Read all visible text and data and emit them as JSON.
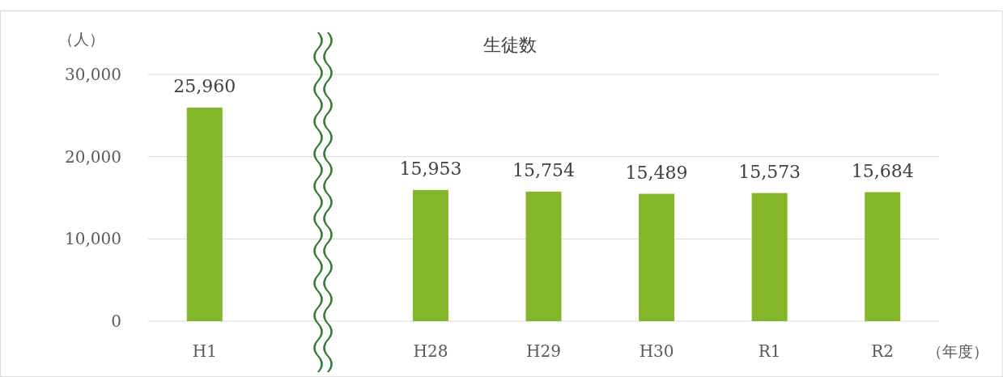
{
  "chart_data": {
    "type": "bar",
    "title": "生徒数",
    "ylabel": "（人）",
    "xlabel": "（年度）",
    "categories": [
      "H1",
      null,
      "H28",
      "H29",
      "H30",
      "R1",
      "R2"
    ],
    "values": [
      25960,
      null,
      15953,
      15754,
      15489,
      15573,
      15684
    ],
    "value_labels": [
      "25,960",
      null,
      "15,953",
      "15,754",
      "15,489",
      "15,573",
      "15,684"
    ],
    "color": "#84b62a",
    "ylim": [
      0,
      30000
    ],
    "yticks": [
      {
        "value": 0,
        "label": "0"
      },
      {
        "value": 10000,
        "label": "10,000"
      },
      {
        "value": 20000,
        "label": "20,000"
      },
      {
        "value": 30000,
        "label": "30,000"
      }
    ],
    "grid": "y"
  }
}
